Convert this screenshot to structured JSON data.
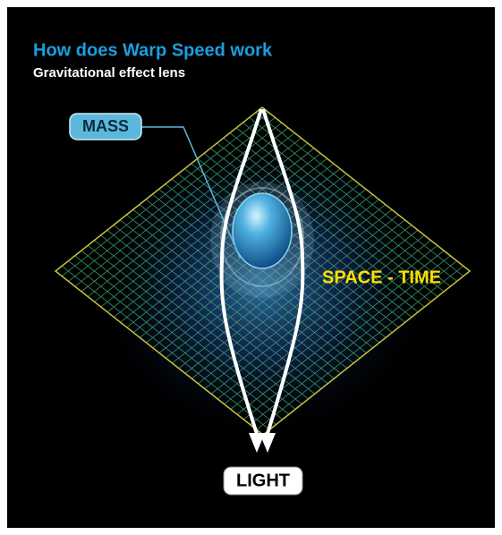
{
  "header": {
    "title": "How does Warp Speed work",
    "subtitle": "Gravitational effect lens"
  },
  "labels": {
    "mass": "MASS",
    "space_time": "SPACE - TIME",
    "light": "LIGHT"
  }
}
